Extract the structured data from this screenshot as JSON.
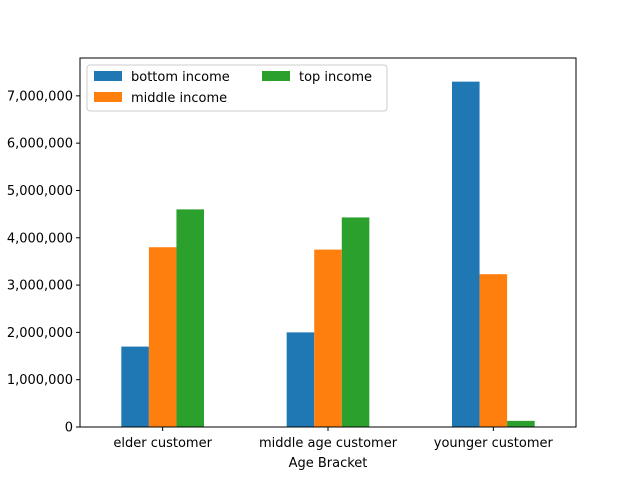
{
  "chart_data": {
    "type": "bar",
    "title": "",
    "xlabel": "Age Bracket",
    "ylabel": "",
    "categories": [
      "elder customer",
      "middle age customer",
      "younger customer"
    ],
    "series": [
      {
        "name": "bottom income",
        "color": "#1f77b4",
        "values": [
          1700000,
          2000000,
          7300000
        ]
      },
      {
        "name": "middle income",
        "color": "#ff7f0e",
        "values": [
          3800000,
          3750000,
          3230000
        ]
      },
      {
        "name": "top income",
        "color": "#2ca02c",
        "values": [
          4600000,
          4430000,
          130000
        ]
      }
    ],
    "ylim": [
      0,
      7800000
    ],
    "yticks": [
      0,
      1000000,
      2000000,
      3000000,
      4000000,
      5000000,
      6000000,
      7000000
    ],
    "ytick_labels": [
      "0",
      "1,000,000",
      "2,000,000",
      "3,000,000",
      "4,000,000",
      "5,000,000",
      "6,000,000",
      "7,000,000"
    ],
    "grid": false,
    "legend": {
      "placement": "top-left",
      "columns": 2
    }
  }
}
